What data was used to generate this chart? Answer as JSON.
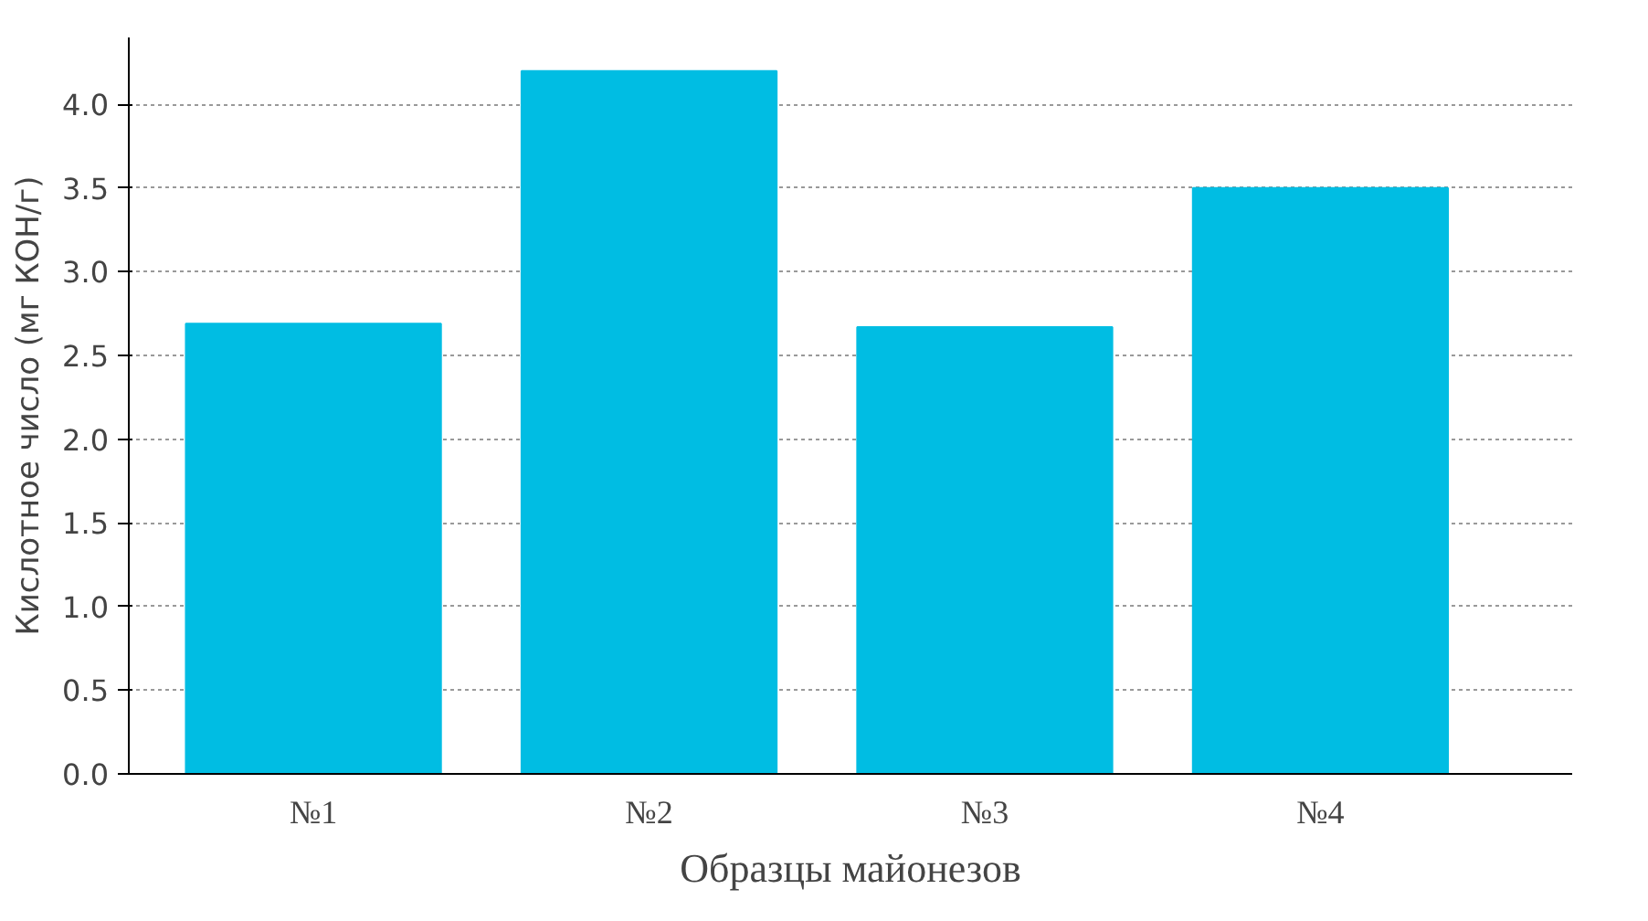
{
  "chart_data": {
    "type": "bar",
    "xlabel": "Образцы майонезов",
    "ylabel": "Кислотное число (мг КОН/г)",
    "categories": [
      "№1",
      "№2",
      "№3",
      "№4"
    ],
    "values": [
      2.69,
      4.2,
      2.67,
      3.5
    ],
    "color": "#00bde3",
    "ylim": [
      0,
      4.4
    ],
    "yticks": [
      {
        "value": 0,
        "label": "0.0"
      },
      0.5,
      {
        "value": 1,
        "label": "1.0"
      },
      1.5,
      {
        "value": 2,
        "label": "2.0"
      },
      2.5,
      {
        "value": 3,
        "label": "3.0"
      },
      3.5,
      {
        "value": 4,
        "label": "4.0"
      }
    ],
    "grid": "y"
  }
}
